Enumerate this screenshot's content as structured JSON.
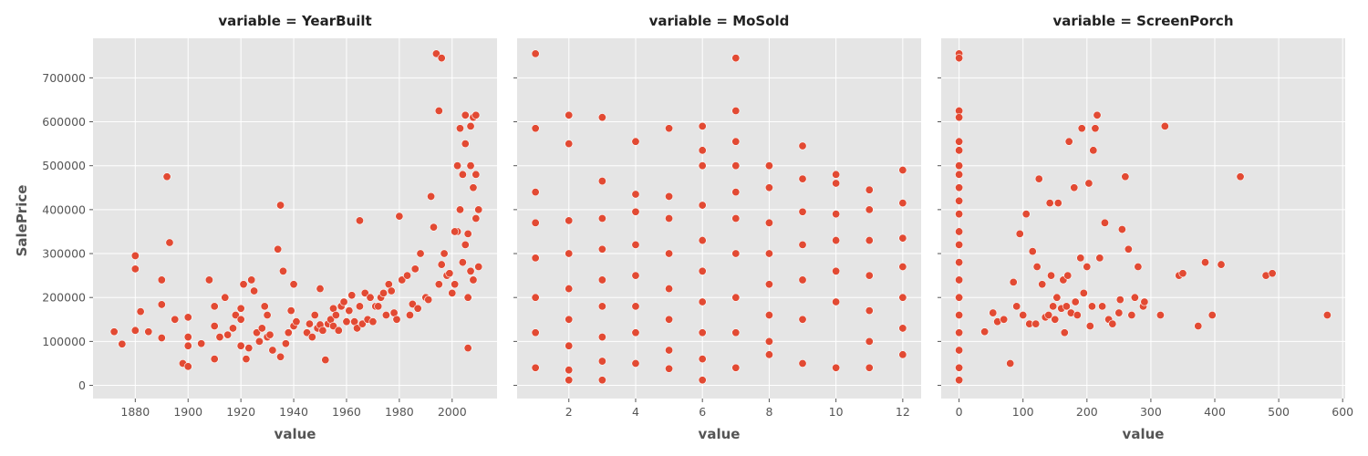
{
  "figure": {
    "ylabel": "SalePrice",
    "point_color": "#e24a33",
    "panel_bg": "#e5e5e5",
    "grid_color": "#ffffff"
  },
  "chart_data": [
    {
      "type": "scatter",
      "title": "variable = YearBuilt",
      "xlabel": "value",
      "ylabel": "SalePrice",
      "xlim": [
        1864,
        2017
      ],
      "ylim": [
        -30000,
        790000
      ],
      "xticks": [
        1880,
        1900,
        1920,
        1940,
        1960,
        1980,
        2000
      ],
      "yticks": [
        0,
        100000,
        200000,
        300000,
        400000,
        500000,
        600000,
        700000
      ],
      "grid": true,
      "x": [
        1872,
        1875,
        1880,
        1880,
        1880,
        1882,
        1885,
        1890,
        1890,
        1890,
        1892,
        1893,
        1895,
        1898,
        1900,
        1900,
        1900,
        1900,
        1905,
        1908,
        1910,
        1910,
        1910,
        1912,
        1914,
        1915,
        1917,
        1918,
        1920,
        1920,
        1920,
        1921,
        1922,
        1923,
        1924,
        1925,
        1926,
        1927,
        1928,
        1929,
        1930,
        1930,
        1931,
        1932,
        1934,
        1935,
        1935,
        1936,
        1937,
        1938,
        1939,
        1940,
        1940,
        1941,
        1945,
        1946,
        1947,
        1948,
        1949,
        1950,
        1950,
        1951,
        1952,
        1953,
        1954,
        1955,
        1955,
        1956,
        1957,
        1958,
        1959,
        1960,
        1961,
        1962,
        1963,
        1964,
        1965,
        1965,
        1966,
        1967,
        1968,
        1969,
        1970,
        1971,
        1972,
        1973,
        1974,
        1975,
        1976,
        1977,
        1978,
        1979,
        1980,
        1981,
        1983,
        1984,
        1985,
        1986,
        1987,
        1988,
        1990,
        1991,
        1992,
        1993,
        1994,
        1995,
        1995,
        1996,
        1996,
        1997,
        1998,
        1999,
        2000,
        2001,
        2002,
        2003,
        2003,
        2004,
        2004,
        2005,
        2005,
        2005,
        2006,
        2006,
        2006,
        2007,
        2007,
        2007,
        2008,
        2008,
        2008,
        2009,
        2009,
        2009,
        2010,
        2010,
        2003,
        2002,
        2001
      ],
      "y": [
        122000,
        94000,
        125000,
        265000,
        295000,
        168000,
        122000,
        108000,
        240000,
        184000,
        475000,
        325000,
        150000,
        50000,
        110000,
        43000,
        155000,
        90000,
        95000,
        240000,
        60000,
        135000,
        180000,
        110000,
        200000,
        115000,
        130000,
        160000,
        90000,
        150000,
        175000,
        230000,
        60000,
        85000,
        240000,
        215000,
        120000,
        100000,
        130000,
        180000,
        160000,
        110000,
        115000,
        80000,
        310000,
        410000,
        65000,
        260000,
        95000,
        120000,
        170000,
        135000,
        230000,
        145000,
        120000,
        140000,
        110000,
        160000,
        130000,
        138000,
        220000,
        125000,
        58000,
        140000,
        150000,
        175000,
        135000,
        160000,
        125000,
        180000,
        190000,
        145000,
        170000,
        205000,
        145000,
        130000,
        375000,
        180000,
        140000,
        210000,
        150000,
        200000,
        145000,
        180000,
        180000,
        200000,
        210000,
        160000,
        230000,
        215000,
        165000,
        150000,
        385000,
        240000,
        250000,
        160000,
        185000,
        265000,
        175000,
        300000,
        200000,
        195000,
        430000,
        360000,
        755000,
        625000,
        230000,
        745000,
        275000,
        300000,
        250000,
        255000,
        210000,
        230000,
        350000,
        585000,
        400000,
        480000,
        280000,
        615000,
        550000,
        320000,
        200000,
        85000,
        345000,
        590000,
        500000,
        260000,
        610000,
        450000,
        240000,
        615000,
        480000,
        380000,
        270000,
        400000,
        400000,
        500000,
        350000
      ]
    },
    {
      "type": "scatter",
      "title": "variable = MoSold",
      "xlabel": "value",
      "xlim": [
        0.45,
        12.55
      ],
      "ylim": [
        -30000,
        790000
      ],
      "xticks": [
        2,
        4,
        6,
        8,
        10,
        12
      ],
      "yticks": [
        0,
        100000,
        200000,
        300000,
        400000,
        500000,
        600000,
        700000
      ],
      "grid": true,
      "x": [
        1,
        1,
        1,
        1,
        1,
        1,
        1,
        1,
        2,
        2,
        2,
        2,
        2,
        2,
        2,
        2,
        2,
        3,
        3,
        3,
        3,
        3,
        3,
        3,
        3,
        3,
        4,
        4,
        4,
        4,
        4,
        4,
        4,
        4,
        5,
        5,
        5,
        5,
        5,
        5,
        5,
        5,
        6,
        6,
        6,
        6,
        6,
        6,
        6,
        6,
        6,
        6,
        7,
        7,
        7,
        7,
        7,
        7,
        7,
        7,
        7,
        7,
        8,
        8,
        8,
        8,
        8,
        8,
        8,
        8,
        9,
        9,
        9,
        9,
        9,
        9,
        9,
        10,
        10,
        10,
        10,
        10,
        10,
        10,
        11,
        11,
        11,
        11,
        11,
        11,
        11,
        12,
        12,
        12,
        12,
        12,
        12,
        12
      ],
      "y": [
        755000,
        585000,
        440000,
        370000,
        290000,
        200000,
        120000,
        40000,
        615000,
        550000,
        375000,
        300000,
        220000,
        150000,
        90000,
        35000,
        12000,
        610000,
        465000,
        380000,
        310000,
        240000,
        180000,
        110000,
        55000,
        12000,
        555000,
        435000,
        395000,
        320000,
        250000,
        180000,
        120000,
        50000,
        585000,
        430000,
        380000,
        300000,
        220000,
        150000,
        80000,
        38000,
        590000,
        535000,
        500000,
        410000,
        330000,
        260000,
        190000,
        120000,
        60000,
        12000,
        745000,
        625000,
        555000,
        500000,
        440000,
        380000,
        300000,
        200000,
        120000,
        40000,
        500000,
        450000,
        370000,
        300000,
        230000,
        160000,
        100000,
        70000,
        545000,
        470000,
        395000,
        320000,
        240000,
        150000,
        50000,
        480000,
        460000,
        390000,
        330000,
        260000,
        190000,
        40000,
        445000,
        400000,
        330000,
        250000,
        170000,
        100000,
        40000,
        490000,
        415000,
        335000,
        270000,
        200000,
        130000,
        70000
      ]
    },
    {
      "type": "scatter",
      "title": "variable = ScreenPorch",
      "xlabel": "value",
      "xlim": [
        -28,
        604
      ],
      "ylim": [
        -30000,
        790000
      ],
      "xticks": [
        0,
        100,
        200,
        300,
        400,
        500,
        600
      ],
      "yticks": [
        0,
        100000,
        200000,
        300000,
        400000,
        500000,
        600000,
        700000
      ],
      "grid": true,
      "x": [
        0,
        0,
        0,
        0,
        0,
        0,
        0,
        0,
        0,
        0,
        0,
        0,
        0,
        0,
        0,
        0,
        0,
        0,
        0,
        0,
        0,
        40,
        53,
        60,
        70,
        80,
        85,
        90,
        95,
        100,
        105,
        110,
        115,
        120,
        122,
        125,
        130,
        135,
        140,
        142,
        144,
        147,
        150,
        153,
        155,
        160,
        163,
        165,
        168,
        170,
        172,
        175,
        180,
        182,
        185,
        190,
        192,
        195,
        200,
        203,
        205,
        208,
        210,
        213,
        216,
        220,
        224,
        228,
        234,
        240,
        250,
        252,
        255,
        260,
        265,
        270,
        275,
        280,
        288,
        290,
        315,
        322,
        344,
        350,
        374,
        385,
        396,
        410,
        440,
        480,
        490,
        576
      ],
      "y": [
        755000,
        745000,
        625000,
        610000,
        555000,
        535000,
        500000,
        480000,
        450000,
        420000,
        390000,
        350000,
        320000,
        280000,
        240000,
        200000,
        160000,
        120000,
        80000,
        40000,
        12000,
        122000,
        165000,
        145000,
        150000,
        50000,
        235000,
        180000,
        345000,
        160000,
        390000,
        140000,
        305000,
        140000,
        270000,
        470000,
        230000,
        155000,
        160000,
        415000,
        250000,
        180000,
        150000,
        200000,
        415000,
        175000,
        240000,
        120000,
        180000,
        250000,
        555000,
        165000,
        450000,
        190000,
        160000,
        290000,
        585000,
        210000,
        270000,
        460000,
        135000,
        180000,
        535000,
        585000,
        615000,
        290000,
        180000,
        370000,
        150000,
        140000,
        165000,
        195000,
        355000,
        475000,
        310000,
        160000,
        200000,
        270000,
        180000,
        190000,
        160000,
        590000,
        250000,
        255000,
        135000,
        280000,
        160000,
        275000,
        475000,
        250000,
        255000,
        160000
      ]
    }
  ]
}
